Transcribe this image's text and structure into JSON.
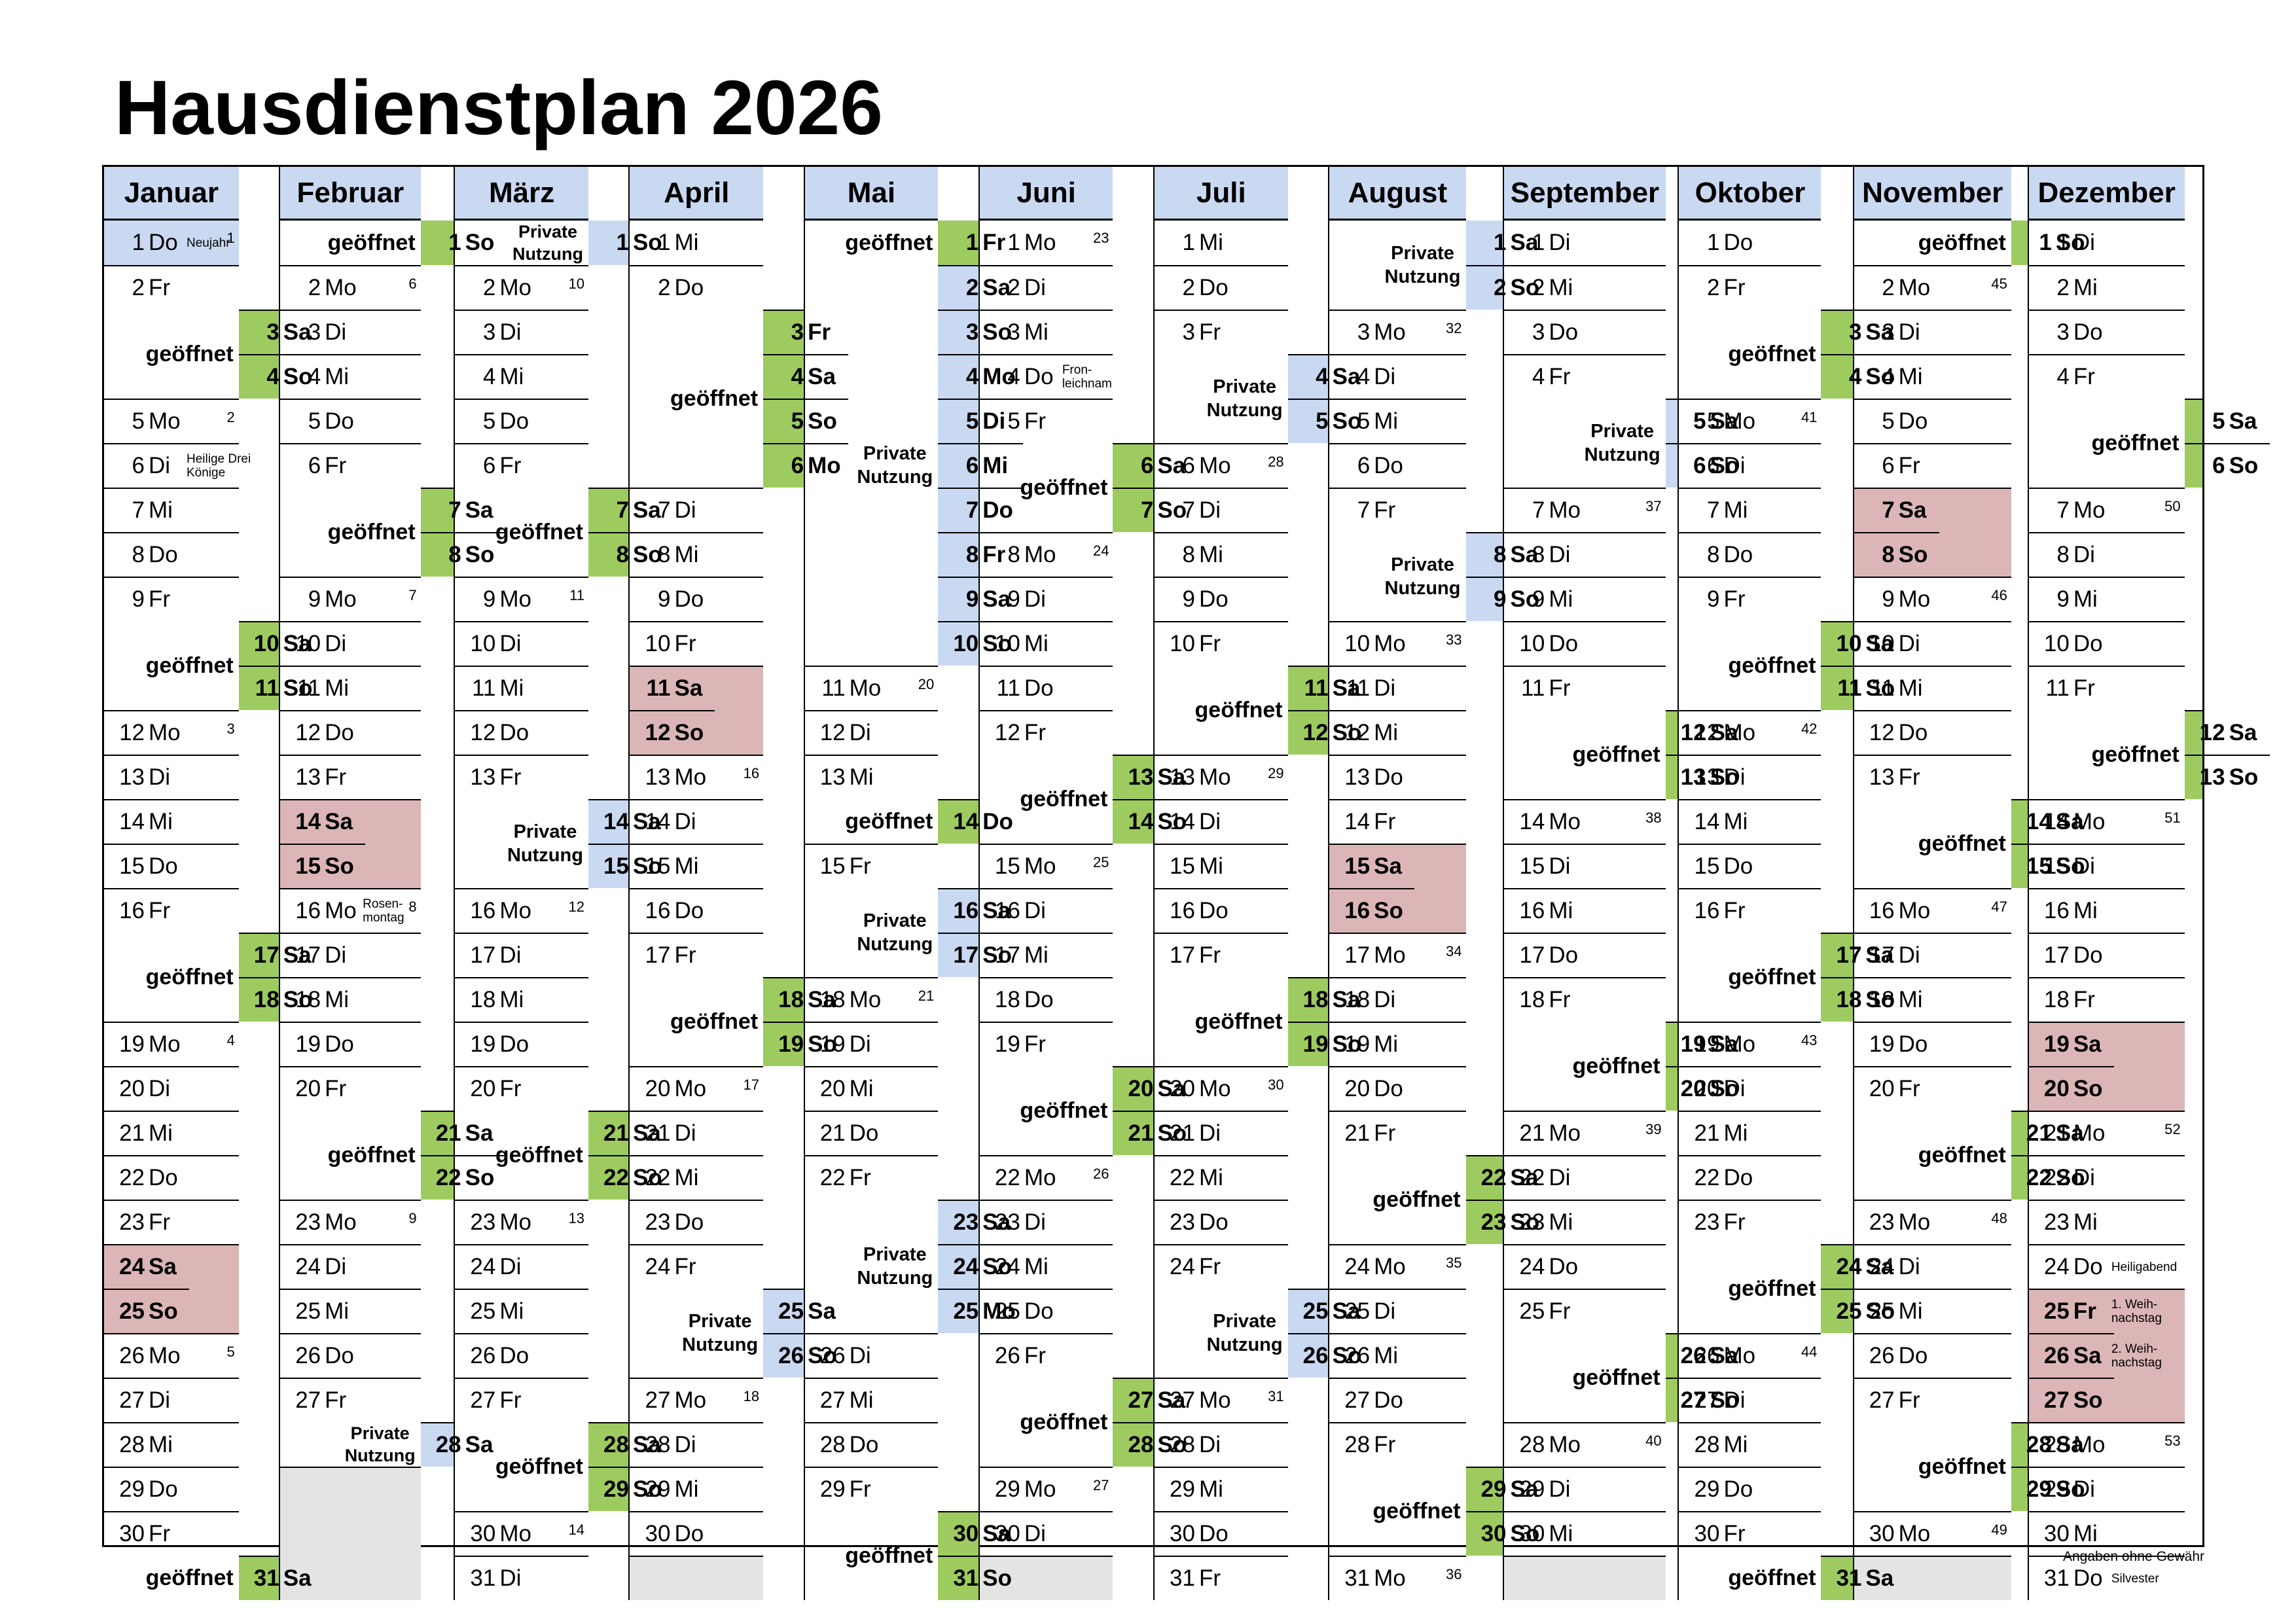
{
  "title": "Hausdienstplan 2026",
  "footer": "Angaben ohne Gewähr",
  "labels": {
    "open": "geöffnet",
    "private": "Private\nNutzung"
  },
  "colors": {
    "header": "#c9d9f1",
    "open": "#9ecb5f",
    "private": "#c9d9f1",
    "holiday": "#dcb6b6",
    "empty": "#e4e4e4"
  },
  "months": [
    {
      "name": "Januar",
      "days": [
        "Do",
        "Fr",
        "Sa",
        "So",
        "Mo",
        "Di",
        "Mi",
        "Do",
        "Fr",
        "Sa",
        "So",
        "Mo",
        "Di",
        "Mi",
        "Do",
        "Fr",
        "Sa",
        "So",
        "Mo",
        "Di",
        "Mi",
        "Do",
        "Fr",
        "Sa",
        "So",
        "Mo",
        "Di",
        "Mi",
        "Do",
        "Fr",
        "Sa"
      ],
      "kw": {
        "1": "1",
        "5": "2",
        "12": "3",
        "19": "4",
        "26": "5"
      },
      "notes": {
        "1": "Neujahr",
        "6": "Heilige Drei\nKönige"
      },
      "spans": [
        [
          1,
          1,
          "blue",
          ""
        ],
        [
          3,
          4,
          "green",
          "open"
        ],
        [
          10,
          11,
          "green",
          "open"
        ],
        [
          17,
          18,
          "green",
          "open"
        ],
        [
          24,
          25,
          "red",
          ""
        ],
        [
          31,
          31,
          "green",
          "open"
        ]
      ]
    },
    {
      "name": "Februar",
      "days": [
        "So",
        "Mo",
        "Di",
        "Mi",
        "Do",
        "Fr",
        "Sa",
        "So",
        "Mo",
        "Di",
        "Mi",
        "Do",
        "Fr",
        "Sa",
        "So",
        "Mo",
        "Di",
        "Mi",
        "Do",
        "Fr",
        "Sa",
        "So",
        "Mo",
        "Di",
        "Mi",
        "Do",
        "Fr",
        "Sa"
      ],
      "kw": {
        "2": "6",
        "9": "7",
        "16": "8",
        "23": "9"
      },
      "notes": {
        "16": "Rosen-\nmontag"
      },
      "spans": [
        [
          1,
          1,
          "green",
          "open"
        ],
        [
          7,
          8,
          "green",
          "open"
        ],
        [
          14,
          15,
          "red",
          ""
        ],
        [
          21,
          22,
          "green",
          "open"
        ],
        [
          28,
          28,
          "blue",
          "private"
        ]
      ]
    },
    {
      "name": "März",
      "days": [
        "So",
        "Mo",
        "Di",
        "Mi",
        "Do",
        "Fr",
        "Sa",
        "So",
        "Mo",
        "Di",
        "Mi",
        "Do",
        "Fr",
        "Sa",
        "So",
        "Mo",
        "Di",
        "Mi",
        "Do",
        "Fr",
        "Sa",
        "So",
        "Mo",
        "Di",
        "Mi",
        "Do",
        "Fr",
        "Sa",
        "So",
        "Mo",
        "Di"
      ],
      "kw": {
        "2": "10",
        "9": "11",
        "16": "12",
        "23": "13",
        "30": "14"
      },
      "notes": {},
      "spans": [
        [
          1,
          1,
          "blue",
          "private"
        ],
        [
          7,
          8,
          "green",
          "open"
        ],
        [
          14,
          15,
          "blue",
          "private"
        ],
        [
          21,
          22,
          "green",
          "open"
        ],
        [
          28,
          29,
          "green",
          "open"
        ]
      ]
    },
    {
      "name": "April",
      "days": [
        "Mi",
        "Do",
        "Fr",
        "Sa",
        "So",
        "Mo",
        "Di",
        "Mi",
        "Do",
        "Fr",
        "Sa",
        "So",
        "Mo",
        "Di",
        "Mi",
        "Do",
        "Fr",
        "Sa",
        "So",
        "Mo",
        "Di",
        "Mi",
        "Do",
        "Fr",
        "Sa",
        "So",
        "Mo",
        "Di",
        "Mi",
        "Do"
      ],
      "kw": {
        "13": "16",
        "20": "17",
        "27": "18"
      },
      "notes": {},
      "spans": [
        [
          3,
          6,
          "green",
          "open"
        ],
        [
          11,
          12,
          "red",
          ""
        ],
        [
          18,
          19,
          "green",
          "open"
        ],
        [
          25,
          26,
          "blue",
          "private"
        ]
      ]
    },
    {
      "name": "Mai",
      "days": [
        "Fr",
        "Sa",
        "So",
        "Mo",
        "Di",
        "Mi",
        "Do",
        "Fr",
        "Sa",
        "So",
        "Mo",
        "Di",
        "Mi",
        "Do",
        "Fr",
        "Sa",
        "So",
        "Mo",
        "Di",
        "Mi",
        "Do",
        "Fr",
        "Sa",
        "So",
        "Mo",
        "Di",
        "Mi",
        "Do",
        "Fr",
        "Sa",
        "So"
      ],
      "kw": {
        "11": "20",
        "18": "21"
      },
      "notes": {},
      "spans": [
        [
          1,
          1,
          "green",
          "open"
        ],
        [
          2,
          10,
          "blue",
          "private"
        ],
        [
          14,
          14,
          "green",
          "open"
        ],
        [
          16,
          17,
          "blue",
          "private"
        ],
        [
          23,
          25,
          "blue",
          "private"
        ],
        [
          30,
          31,
          "green",
          "open"
        ]
      ]
    },
    {
      "name": "Juni",
      "days": [
        "Mo",
        "Di",
        "Mi",
        "Do",
        "Fr",
        "Sa",
        "So",
        "Mo",
        "Di",
        "Mi",
        "Do",
        "Fr",
        "Sa",
        "So",
        "Mo",
        "Di",
        "Mi",
        "Do",
        "Fr",
        "Sa",
        "So",
        "Mo",
        "Di",
        "Mi",
        "Do",
        "Fr",
        "Sa",
        "So",
        "Mo",
        "Di"
      ],
      "kw": {
        "1": "23",
        "8": "24",
        "15": "25",
        "22": "26",
        "29": "27"
      },
      "notes": {
        "4": "Fron-\nleichnam"
      },
      "spans": [
        [
          6,
          7,
          "green",
          "open"
        ],
        [
          13,
          14,
          "green",
          "open"
        ],
        [
          20,
          21,
          "green",
          "open"
        ],
        [
          27,
          28,
          "green",
          "open"
        ]
      ]
    },
    {
      "name": "Juli",
      "days": [
        "Mi",
        "Do",
        "Fr",
        "Sa",
        "So",
        "Mo",
        "Di",
        "Mi",
        "Do",
        "Fr",
        "Sa",
        "So",
        "Mo",
        "Di",
        "Mi",
        "Do",
        "Fr",
        "Sa",
        "So",
        "Mo",
        "Di",
        "Mi",
        "Do",
        "Fr",
        "Sa",
        "So",
        "Mo",
        "Di",
        "Mi",
        "Do",
        "Fr"
      ],
      "kw": {
        "6": "28",
        "13": "29",
        "20": "30",
        "27": "31"
      },
      "notes": {},
      "spans": [
        [
          4,
          5,
          "blue",
          "private"
        ],
        [
          11,
          12,
          "green",
          "open"
        ],
        [
          18,
          19,
          "green",
          "open"
        ],
        [
          25,
          26,
          "blue",
          "private"
        ]
      ]
    },
    {
      "name": "August",
      "days": [
        "Sa",
        "So",
        "Mo",
        "Di",
        "Mi",
        "Do",
        "Fr",
        "Sa",
        "So",
        "Mo",
        "Di",
        "Mi",
        "Do",
        "Fr",
        "Sa",
        "So",
        "Mo",
        "Di",
        "Mi",
        "Do",
        "Fr",
        "Sa",
        "So",
        "Mo",
        "Di",
        "Mi",
        "Do",
        "Fr",
        "Sa",
        "So",
        "Mo"
      ],
      "kw": {
        "3": "32",
        "10": "33",
        "17": "34",
        "24": "35",
        "31": "36"
      },
      "notes": {},
      "spans": [
        [
          1,
          2,
          "blue",
          "private"
        ],
        [
          8,
          9,
          "blue",
          "private"
        ],
        [
          15,
          16,
          "red",
          ""
        ],
        [
          22,
          23,
          "green",
          "open"
        ],
        [
          29,
          30,
          "green",
          "open"
        ]
      ]
    },
    {
      "name": "September",
      "days": [
        "Di",
        "Mi",
        "Do",
        "Fr",
        "Sa",
        "So",
        "Mo",
        "Di",
        "Mi",
        "Do",
        "Fr",
        "Sa",
        "So",
        "Mo",
        "Di",
        "Mi",
        "Do",
        "Fr",
        "Sa",
        "So",
        "Mo",
        "Di",
        "Mi",
        "Do",
        "Fr",
        "Sa",
        "So",
        "Mo",
        "Di",
        "Mi"
      ],
      "kw": {
        "7": "37",
        "14": "38",
        "21": "39",
        "28": "40"
      },
      "notes": {},
      "spans": [
        [
          5,
          6,
          "blue",
          "private"
        ],
        [
          12,
          13,
          "green",
          "open"
        ],
        [
          19,
          20,
          "green",
          "open"
        ],
        [
          26,
          27,
          "green",
          "open"
        ]
      ]
    },
    {
      "name": "Oktober",
      "days": [
        "Do",
        "Fr",
        "Sa",
        "So",
        "Mo",
        "Di",
        "Mi",
        "Do",
        "Fr",
        "Sa",
        "So",
        "Mo",
        "Di",
        "Mi",
        "Do",
        "Fr",
        "Sa",
        "So",
        "Mo",
        "Di",
        "Mi",
        "Do",
        "Fr",
        "Sa",
        "So",
        "Mo",
        "Di",
        "Mi",
        "Do",
        "Fr",
        "Sa"
      ],
      "kw": {
        "5": "41",
        "12": "42",
        "19": "43",
        "26": "44"
      },
      "notes": {},
      "spans": [
        [
          3,
          4,
          "green",
          "open"
        ],
        [
          10,
          11,
          "green",
          "open"
        ],
        [
          17,
          18,
          "green",
          "open"
        ],
        [
          24,
          25,
          "green",
          "open"
        ],
        [
          31,
          31,
          "green",
          "open"
        ]
      ]
    },
    {
      "name": "November",
      "days": [
        "So",
        "Mo",
        "Di",
        "Mi",
        "Do",
        "Fr",
        "Sa",
        "So",
        "Mo",
        "Di",
        "Mi",
        "Do",
        "Fr",
        "Sa",
        "So",
        "Mo",
        "Di",
        "Mi",
        "Do",
        "Fr",
        "Sa",
        "So",
        "Mo",
        "Di",
        "Mi",
        "Do",
        "Fr",
        "Sa",
        "So",
        "Mo"
      ],
      "kw": {
        "2": "45",
        "9": "46",
        "16": "47",
        "23": "48",
        "30": "49"
      },
      "notes": {},
      "spans": [
        [
          1,
          1,
          "green",
          "open"
        ],
        [
          7,
          8,
          "red",
          ""
        ],
        [
          14,
          15,
          "green",
          "open"
        ],
        [
          21,
          22,
          "green",
          "open"
        ],
        [
          28,
          29,
          "green",
          "open"
        ]
      ]
    },
    {
      "name": "Dezember",
      "days": [
        "Di",
        "Mi",
        "Do",
        "Fr",
        "Sa",
        "So",
        "Mo",
        "Di",
        "Mi",
        "Do",
        "Fr",
        "Sa",
        "So",
        "Mo",
        "Di",
        "Mi",
        "Do",
        "Fr",
        "Sa",
        "So",
        "Mo",
        "Di",
        "Mi",
        "Do",
        "Fr",
        "Sa",
        "So",
        "Mo",
        "Di",
        "Mi",
        "Do"
      ],
      "kw": {
        "7": "50",
        "14": "51",
        "21": "52",
        "28": "53"
      },
      "notes": {
        "24": "Heiligabend",
        "25": "1. Weih-\nnachstag",
        "26": "2. Weih-\nnachstag",
        "31": "Silvester"
      },
      "spans": [
        [
          5,
          6,
          "green",
          "open"
        ],
        [
          12,
          13,
          "green",
          "open"
        ],
        [
          19,
          20,
          "red",
          ""
        ],
        [
          25,
          27,
          "red",
          ""
        ]
      ]
    }
  ]
}
